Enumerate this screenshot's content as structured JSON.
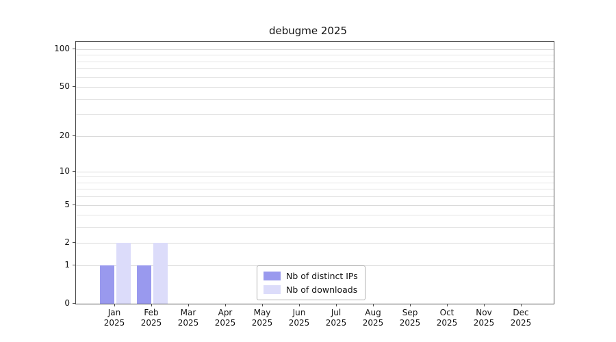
{
  "title": "debugme 2025",
  "chart_data": {
    "type": "bar",
    "title": "debugme 2025",
    "categories": [
      "Jan 2025",
      "Feb 2025",
      "Mar 2025",
      "Apr 2025",
      "May 2025",
      "Jun 2025",
      "Jul 2025",
      "Aug 2025",
      "Sep 2025",
      "Oct 2025",
      "Nov 2025",
      "Dec 2025"
    ],
    "series": [
      {
        "name": "Nb of distinct IPs",
        "color": "#9999ee",
        "values": [
          1,
          1,
          0,
          0,
          0,
          0,
          0,
          0,
          0,
          0,
          0,
          0
        ]
      },
      {
        "name": "Nb of downloads",
        "color": "#dcdcfa",
        "values": [
          2,
          2,
          0,
          0,
          0,
          0,
          0,
          0,
          0,
          0,
          0,
          0
        ]
      }
    ],
    "xlabel": "",
    "ylabel": "",
    "y_scale": "log(1+v)",
    "ylim": [
      0,
      100
    ],
    "y_ticks": [
      0,
      1,
      2,
      5,
      10,
      20,
      50,
      100
    ],
    "y_minor_gridlines": [
      1,
      2,
      3,
      4,
      5,
      6,
      7,
      8,
      9,
      10,
      20,
      30,
      40,
      50,
      60,
      70,
      80,
      90,
      100
    ],
    "grid": "horizontal",
    "legend_position": "bottom-center-inside"
  }
}
